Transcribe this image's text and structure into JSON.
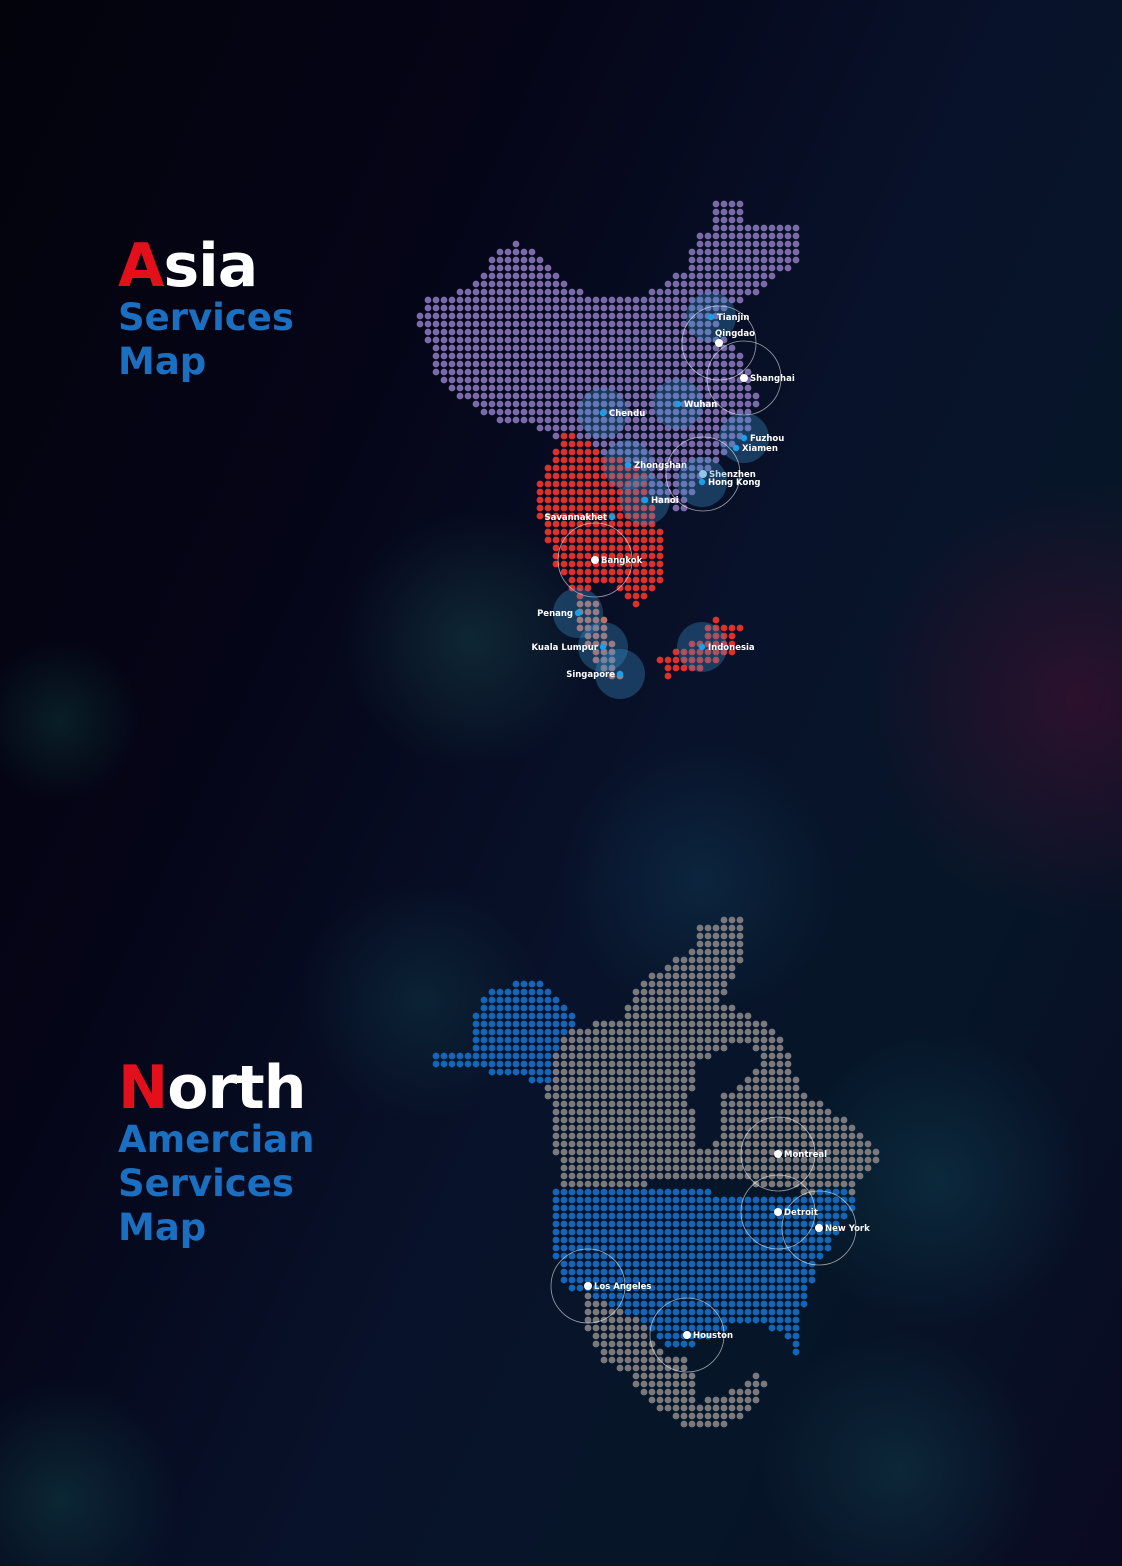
{
  "asia": {
    "title_first_letter": "A",
    "title_rest": "sia",
    "subtitle_lines": [
      "Services",
      "Map"
    ],
    "colors": {
      "china": "#7a6aa8",
      "southeast_asia": "#e0302c",
      "maritime": "#c07062",
      "accent_red": "#e3101c",
      "accent_blue": "#1a6fc0"
    },
    "cities": [
      {
        "name": "Tianjin",
        "marker": "blue-halo"
      },
      {
        "name": "Qingdao",
        "marker": "white-ring"
      },
      {
        "name": "Shanghai",
        "marker": "white-ring"
      },
      {
        "name": "Chendu",
        "marker": "blue-halo"
      },
      {
        "name": "Wuhan",
        "marker": "blue-halo"
      },
      {
        "name": "Fuzhou",
        "marker": "blue-halo"
      },
      {
        "name": "Xiamen",
        "marker": "blue-dot"
      },
      {
        "name": "Zhongshan",
        "marker": "blue-halo"
      },
      {
        "name": "Shenzhen",
        "marker": "white-ring"
      },
      {
        "name": "Hong Kong",
        "marker": "blue-halo"
      },
      {
        "name": "Hanoi",
        "marker": "blue-halo"
      },
      {
        "name": "Savannakhet",
        "marker": "blue-dot"
      },
      {
        "name": "Bangkok",
        "marker": "white-ring"
      },
      {
        "name": "Penang",
        "marker": "blue-halo"
      },
      {
        "name": "Kuala Lumpur",
        "marker": "blue-halo"
      },
      {
        "name": "Singapore",
        "marker": "blue-halo"
      },
      {
        "name": "Indonesia",
        "marker": "blue-halo"
      }
    ]
  },
  "north_america": {
    "title_first_letter": "N",
    "title_rest": "orth",
    "subtitle_lines": [
      "Amercian",
      "Services",
      "Map"
    ],
    "colors": {
      "usa_alaska": "#1466b8",
      "canada_mexico": "#7a7a7e"
    },
    "cities": [
      {
        "name": "Montreal",
        "marker": "white-ring"
      },
      {
        "name": "Detroit",
        "marker": "white-ring"
      },
      {
        "name": "New York",
        "marker": "white-ring"
      },
      {
        "name": "Los Angeles",
        "marker": "white-ring"
      },
      {
        "name": "Houston",
        "marker": "white-ring"
      }
    ]
  }
}
